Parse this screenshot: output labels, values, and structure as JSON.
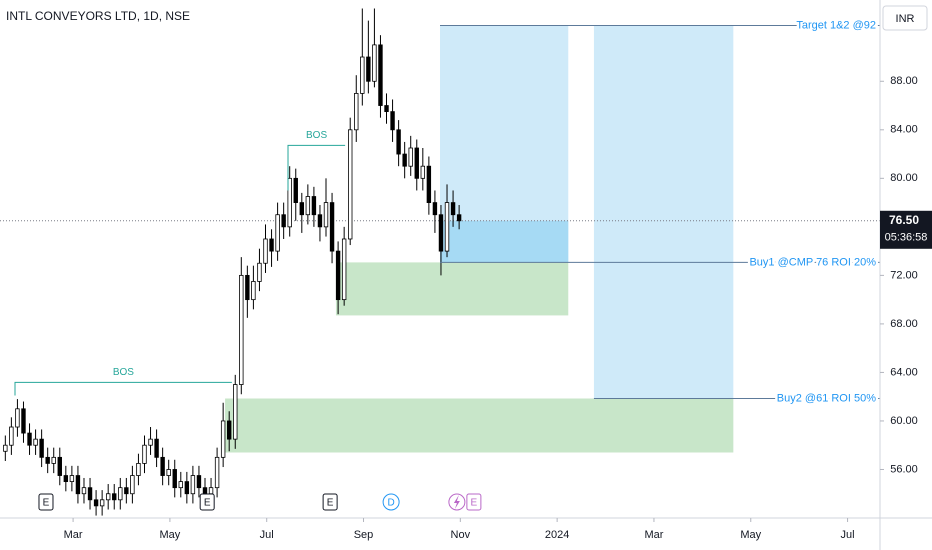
{
  "chart_data": {
    "type": "candlestick",
    "title": "INTL CONVEYORS LTD, 1D, NSE",
    "currency": "INR",
    "x": [
      1.6,
      1.725,
      1.85,
      1.975,
      2.1,
      2.225,
      2.35,
      2.475,
      2.6,
      2.725,
      2.85,
      2.975,
      3.1,
      3.225,
      3.35,
      3.475,
      3.6,
      3.725,
      3.85,
      3.975,
      4.1,
      4.225,
      4.35,
      4.475,
      4.6,
      4.725,
      4.85,
      4.975,
      5.1,
      5.225,
      5.35,
      5.475,
      5.6,
      5.725,
      5.85,
      5.975,
      6.1,
      6.225,
      6.35,
      6.475,
      6.6,
      6.725,
      6.85,
      6.975,
      7.1,
      7.225,
      7.35,
      7.475,
      7.6,
      7.725,
      7.85,
      7.975,
      8.1,
      8.225,
      8.35,
      8.475,
      8.6,
      8.725,
      8.85,
      8.975,
      9.1,
      9.225,
      9.35,
      9.475,
      9.6,
      9.725,
      9.85,
      9.975,
      10.1,
      10.225,
      10.35,
      10.475,
      10.6,
      10.725,
      10.85,
      10.975
    ],
    "open": [
      57.5,
      58,
      59.5,
      61,
      59,
      58,
      58.5,
      57,
      56.5,
      57,
      55.5,
      55,
      55.5,
      54,
      54.5,
      53.5,
      53,
      53.5,
      54,
      53.5,
      54.5,
      54,
      55.5,
      56.5,
      58,
      58.5,
      57,
      55.5,
      56,
      54.5,
      55,
      54,
      55.5,
      54.5,
      54,
      54.5,
      57,
      60,
      58.5,
      63,
      72,
      70,
      71.5,
      73,
      75,
      74,
      77,
      76,
      80,
      78,
      77,
      78.5,
      77,
      76,
      78,
      74,
      70,
      75,
      84,
      87,
      90,
      88,
      91,
      86,
      85.5,
      84,
      82,
      81,
      82.5,
      80,
      81,
      78,
      77,
      74,
      78,
      77
    ],
    "high": [
      58.8,
      60.3,
      61.8,
      61.6,
      59.8,
      59.3,
      59.3,
      57.8,
      57.8,
      57.8,
      56.3,
      56.3,
      56.3,
      55.3,
      55.3,
      54.3,
      54.3,
      54.8,
      54.8,
      55.3,
      55.3,
      56.3,
      57.3,
      58.8,
      59.5,
      59.3,
      57.8,
      56.8,
      56.8,
      55.8,
      55.8,
      56.3,
      56.3,
      55.3,
      55.3,
      57.8,
      61.5,
      60.8,
      63.8,
      73.5,
      72.8,
      72.8,
      74.2,
      76.2,
      75.8,
      78,
      78,
      81,
      80.8,
      78.8,
      79.5,
      79.3,
      77.8,
      80,
      78.8,
      74.8,
      76,
      85,
      88.5,
      94,
      93,
      94,
      91.8,
      87,
      86.5,
      84.8,
      83,
      83.5,
      83.2,
      82.5,
      81.8,
      79,
      77.8,
      79.5,
      79,
      77.8
    ],
    "low": [
      56.7,
      57.2,
      58.7,
      58.2,
      57.2,
      57.2,
      56.2,
      55.7,
      55.7,
      54.7,
      54.2,
      54.2,
      53.2,
      53.2,
      52.7,
      52.2,
      52.2,
      52.7,
      52.7,
      52.7,
      53.2,
      53.2,
      54.7,
      55.7,
      57.2,
      56.2,
      54.7,
      54.7,
      53.7,
      53.7,
      53.2,
      53.2,
      53.7,
      53.2,
      53.2,
      53.7,
      56.2,
      57.5,
      57.7,
      62.2,
      68.5,
      69.2,
      70.7,
      72.2,
      72.7,
      73.2,
      75,
      75.2,
      76.5,
      75.5,
      76.2,
      76,
      74.8,
      75.2,
      73,
      68.8,
      69.5,
      74.5,
      83,
      86,
      87,
      87.5,
      85,
      84.5,
      83,
      81,
      80,
      80.2,
      79,
      79,
      77,
      75.5,
      72,
      73.5,
      76,
      75.8
    ],
    "close": [
      58,
      59.5,
      61,
      59,
      58,
      58.5,
      57,
      56.5,
      57,
      55.5,
      55,
      55.5,
      54,
      54.5,
      53.5,
      53,
      53.5,
      54,
      53.5,
      54.5,
      54,
      55.5,
      56.5,
      58,
      58.5,
      57,
      55.5,
      56,
      54.5,
      55,
      54,
      55.5,
      54.5,
      54,
      54.5,
      57,
      60,
      58.5,
      63,
      72,
      70,
      71.5,
      73,
      75,
      74,
      77,
      76,
      80,
      78,
      77,
      78.5,
      77,
      76,
      78,
      74,
      70,
      75,
      84,
      87,
      90,
      88,
      91,
      86,
      85.5,
      84,
      82,
      81,
      82.5,
      80,
      81,
      78,
      77,
      74,
      78,
      77,
      76.5
    ],
    "xlim": [
      1.49,
      19.67
    ],
    "ylim": [
      52,
      94.7
    ],
    "xticks": [
      {
        "value": 3,
        "label": "Mar"
      },
      {
        "value": 5,
        "label": "May"
      },
      {
        "value": 7,
        "label": "Jul"
      },
      {
        "value": 9,
        "label": "Sep"
      },
      {
        "value": 11,
        "label": "Nov"
      },
      {
        "value": 13,
        "label": "2024"
      },
      {
        "value": 15,
        "label": "Mar"
      },
      {
        "value": 17,
        "label": "May"
      },
      {
        "value": 19,
        "label": "Jul"
      }
    ],
    "yticks": [
      {
        "value": 56,
        "label": "56.00"
      },
      {
        "value": 60,
        "label": "60.00"
      },
      {
        "value": 64,
        "label": "64.00"
      },
      {
        "value": 68,
        "label": "68.00"
      },
      {
        "value": 72,
        "label": "72.00"
      },
      {
        "value": 80,
        "label": "80.00"
      },
      {
        "value": 84,
        "label": "84.00"
      },
      {
        "value": 88,
        "label": "88.00"
      }
    ],
    "last_price": {
      "value": 76.5,
      "label": "76.50"
    },
    "countdown": "05:36:58",
    "zones": [
      {
        "x": [
          10.58,
          13.23
        ],
        "y": [
          73.07,
          92.6
        ],
        "color": "#cfeaf9"
      },
      {
        "x": [
          10.58,
          13.23
        ],
        "y": [
          73.07,
          76.5
        ],
        "color": "#a6daf4"
      },
      {
        "x": [
          13.76,
          16.64
        ],
        "y": [
          61.85,
          92.6
        ],
        "color": "#cfeaf9"
      },
      {
        "x": [
          8.43,
          13.23
        ],
        "y": [
          68.7,
          73.07
        ],
        "color": "#c8e6c9"
      },
      {
        "x": [
          6.14,
          16.64
        ],
        "y": [
          57.4,
          61.85
        ],
        "color": "#c8e6c9"
      }
    ],
    "levels": [
      {
        "label": "Target 1&2 @92",
        "value": 92.6,
        "x": 10.58
      },
      {
        "label": "Buy1 @CMP 76 ROI 20%",
        "value": 73.07,
        "x": 10.58
      },
      {
        "label": "Buy2 @61 ROI 50%",
        "value": 61.85,
        "x": 13.76
      }
    ],
    "bos": [
      {
        "label": "BOS",
        "x": [
          1.8,
          6.28
        ],
        "y": [
          63.18,
          62.1
        ]
      },
      {
        "label": "BOS",
        "x": [
          7.44,
          8.62
        ],
        "y": [
          82.72,
          79
        ]
      }
    ],
    "events": [
      {
        "x": 2.44,
        "label": "E"
      },
      {
        "x": 5.77,
        "label": "E"
      },
      {
        "x": 8.31,
        "label": "E"
      },
      {
        "x": 9.57,
        "label": "D"
      },
      {
        "x": 11.28,
        "label": "E"
      }
    ]
  }
}
